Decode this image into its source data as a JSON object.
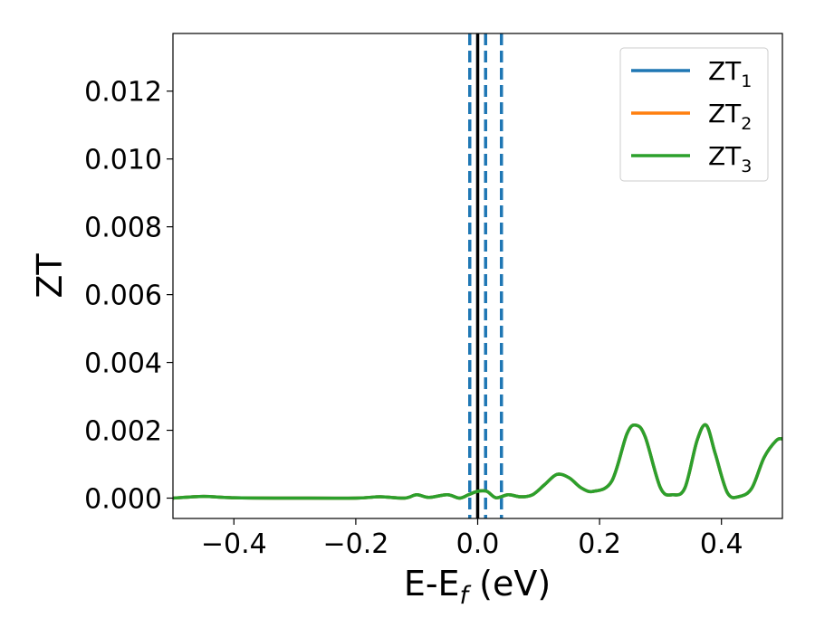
{
  "chart_data": {
    "type": "line",
    "xlabel": "E-E",
    "xlabel_sub": "f",
    "xlabel_unit": " (eV)",
    "ylabel": "ZT",
    "xlim": [
      -0.5,
      0.5
    ],
    "ylim": [
      -0.0006,
      0.0137
    ],
    "x_ticks": [
      -0.4,
      -0.2,
      0.0,
      0.2,
      0.4
    ],
    "x_tick_labels": [
      "−0.4",
      "−0.2",
      "0.0",
      "0.2",
      "0.4"
    ],
    "y_ticks": [
      0.0,
      0.002,
      0.004,
      0.006,
      0.008,
      0.01,
      0.012
    ],
    "y_tick_labels": [
      "0.000",
      "0.002",
      "0.004",
      "0.006",
      "0.008",
      "0.010",
      "0.012"
    ],
    "grid": false,
    "legend_position": "top-right",
    "vertical_lines": [
      {
        "x": 0.0,
        "style": "solid",
        "color": "#000000"
      },
      {
        "x": -0.013,
        "style": "dashed",
        "color": "#1f77b4"
      },
      {
        "x": 0.013,
        "style": "dashed",
        "color": "#1f77b4"
      },
      {
        "x": 0.039,
        "style": "dashed",
        "color": "#1f77b4"
      }
    ],
    "series": [
      {
        "name": "ZT",
        "name_sub": "1",
        "color": "#1f77b4",
        "x": [
          -0.5,
          -0.45,
          -0.4,
          -0.3,
          -0.2,
          -0.16,
          -0.12,
          -0.1,
          -0.08,
          -0.05,
          -0.03,
          -0.015,
          0.0,
          0.015,
          0.03,
          0.05,
          0.07,
          0.09,
          0.11,
          0.13,
          0.15,
          0.17,
          0.19,
          0.22,
          0.245,
          0.26,
          0.275,
          0.3,
          0.32,
          0.34,
          0.36,
          0.375,
          0.39,
          0.41,
          0.43,
          0.45,
          0.47,
          0.49,
          0.5
        ],
        "y": [
          0.0,
          5e-05,
          1e-05,
          0.0,
          0.0,
          4e-05,
          0.0,
          0.0001,
          2e-05,
          0.0001,
          0.0,
          0.0001,
          0.0002,
          0.0002,
          1e-05,
          0.0001,
          4e-05,
          0.0001,
          0.0004,
          0.0007,
          0.0006,
          0.0003,
          0.0002,
          0.0005,
          0.0019,
          0.00215,
          0.0018,
          0.0003,
          0.0001,
          0.0003,
          0.0017,
          0.00215,
          0.0013,
          0.00015,
          5e-05,
          0.0003,
          0.0012,
          0.0017,
          0.00175
        ]
      },
      {
        "name": "ZT",
        "name_sub": "2",
        "color": "#ff7f0e",
        "x": [
          -0.5,
          -0.45,
          -0.4,
          -0.3,
          -0.2,
          -0.16,
          -0.12,
          -0.1,
          -0.08,
          -0.05,
          -0.03,
          -0.015,
          0.0,
          0.015,
          0.03,
          0.05,
          0.07,
          0.09,
          0.11,
          0.13,
          0.15,
          0.17,
          0.19,
          0.22,
          0.245,
          0.26,
          0.275,
          0.3,
          0.32,
          0.34,
          0.36,
          0.375,
          0.39,
          0.41,
          0.43,
          0.45,
          0.47,
          0.49,
          0.5
        ],
        "y": [
          0.0,
          5e-05,
          1e-05,
          0.0,
          0.0,
          4e-05,
          0.0,
          0.0001,
          2e-05,
          0.0001,
          0.0,
          0.0001,
          0.0002,
          0.0002,
          1e-05,
          0.0001,
          4e-05,
          0.0001,
          0.0004,
          0.0007,
          0.0006,
          0.0003,
          0.0002,
          0.0005,
          0.0019,
          0.00215,
          0.0018,
          0.0003,
          0.0001,
          0.0003,
          0.0017,
          0.00215,
          0.0013,
          0.00015,
          5e-05,
          0.0003,
          0.0012,
          0.0017,
          0.00175
        ]
      },
      {
        "name": "ZT",
        "name_sub": "3",
        "color": "#2ca02c",
        "x": [
          -0.5,
          -0.45,
          -0.4,
          -0.3,
          -0.2,
          -0.16,
          -0.12,
          -0.1,
          -0.08,
          -0.05,
          -0.03,
          -0.015,
          0.0,
          0.015,
          0.03,
          0.05,
          0.07,
          0.09,
          0.11,
          0.13,
          0.15,
          0.17,
          0.19,
          0.22,
          0.245,
          0.26,
          0.275,
          0.3,
          0.32,
          0.34,
          0.36,
          0.375,
          0.39,
          0.41,
          0.43,
          0.45,
          0.47,
          0.49,
          0.5
        ],
        "y": [
          0.0,
          5e-05,
          1e-05,
          0.0,
          0.0,
          4e-05,
          0.0,
          0.0001,
          2e-05,
          0.0001,
          0.0,
          0.0001,
          0.0002,
          0.0002,
          1e-05,
          0.0001,
          4e-05,
          0.0001,
          0.0004,
          0.0007,
          0.0006,
          0.0003,
          0.0002,
          0.0005,
          0.0019,
          0.00215,
          0.0018,
          0.0003,
          0.0001,
          0.0003,
          0.0017,
          0.00215,
          0.0013,
          0.00015,
          5e-05,
          0.0003,
          0.0012,
          0.0017,
          0.00175
        ]
      }
    ]
  }
}
